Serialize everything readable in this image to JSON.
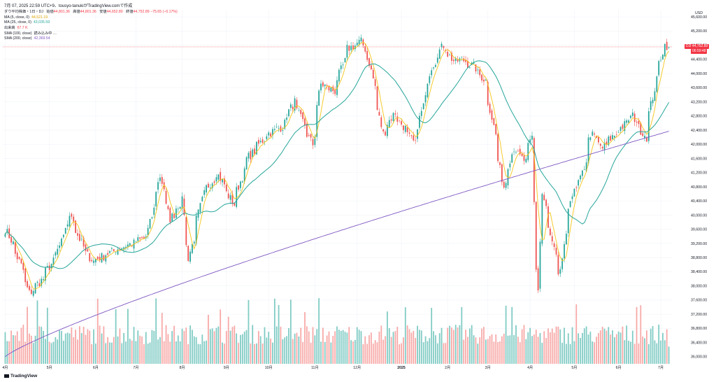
{
  "header": {
    "title": "7月 07, 2025 22:59 UTC+9、tousyo-tanukiがTradingView.comで作成"
  },
  "legend": {
    "symbol": "ダウ平均株価・1日・DJ",
    "ohlc": [
      {
        "label": "始値",
        "value": "44,801.36"
      },
      {
        "label": "高値",
        "value": "44,801.36"
      },
      {
        "label": "安値",
        "value": "44,652.80"
      },
      {
        "label": "終値",
        "value": "44,752.89"
      },
      {
        "label": "",
        "value": "−75.65 (−0.17%)"
      }
    ],
    "indicators": [
      {
        "label": "MA (5, close, 0)",
        "value": "44,521.19",
        "color": "#f5c518"
      },
      {
        "label": "MA (25, close, 0)",
        "value": "43,035.59",
        "color": "#26a69a"
      },
      {
        "label": "出来高",
        "value": "67.7 K",
        "color": "#f23645"
      },
      {
        "label": "SMA (100, close)",
        "value": "読み込み中 …",
        "color": "#131722"
      },
      {
        "label": "SMA (200, close)",
        "value": "42,369.54",
        "color": "#7e57c2"
      }
    ]
  },
  "currency": "USD",
  "last_price_tag": "44,752.89",
  "last_price_sub": "06:59:48",
  "last_price_prefix": "DJI",
  "watermark": "TradingView",
  "colors": {
    "up": "#26a69a",
    "down": "#ef5350",
    "ma5": "#f5c518",
    "ma25": "#26a69a",
    "sma200": "#7e57c2",
    "vol_up": "#80cbc4",
    "vol_down": "#f7a9a7"
  },
  "chart_data": {
    "type": "candlestick",
    "ylabel": "USD",
    "ylim": [
      35800,
      45800
    ],
    "y_ticks": [
      36000,
      36400,
      36800,
      37200,
      37600,
      38000,
      38400,
      38800,
      39200,
      39600,
      40000,
      40400,
      40800,
      41200,
      41600,
      42000,
      42400,
      42800,
      43200,
      43600,
      44000,
      44400,
      44800,
      45200,
      45600
    ],
    "y_tick_labels": [
      "36,000.00",
      "36,400.00",
      "36,800.00",
      "37,200.00",
      "37,600.00",
      "38,000.00",
      "38,400.00",
      "38,800.00",
      "39,200.00",
      "39,600.00",
      "40,000.00",
      "40,400.00",
      "40,800.00",
      "41,200.00",
      "41,600.00",
      "42,000.00",
      "42,400.00",
      "42,800.00",
      "43,200.00",
      "43,600.00",
      "44,000.00",
      "44,400.00",
      "44,800.00",
      "45,200.00",
      "45,600.00"
    ],
    "x_labels": [
      {
        "label": "4月",
        "month": "2024-04"
      },
      {
        "label": "5月",
        "month": "2024-05"
      },
      {
        "label": "6月",
        "month": "2024-06"
      },
      {
        "label": "7月",
        "month": "2024-07"
      },
      {
        "label": "8月",
        "month": "2024-08"
      },
      {
        "label": "9月",
        "month": "2024-09"
      },
      {
        "label": "10月",
        "month": "2024-10"
      },
      {
        "label": "11月",
        "month": "2024-11"
      },
      {
        "label": "12月",
        "month": "2024-12"
      },
      {
        "label": "2025",
        "month": "2025-01"
      },
      {
        "label": "2月",
        "month": "2025-02"
      },
      {
        "label": "3月",
        "month": "2025-03"
      },
      {
        "label": "4月",
        "month": "2025-04"
      },
      {
        "label": "5月",
        "month": "2025-05"
      },
      {
        "label": "6月",
        "month": "2025-06"
      },
      {
        "label": "7月",
        "month": "2025-07"
      }
    ],
    "close_anchors": [
      [
        "2024-04-01",
        39600
      ],
      [
        "2024-04-10",
        38700
      ],
      [
        "2024-04-17",
        37800
      ],
      [
        "2024-04-26",
        38200
      ],
      [
        "2024-05-06",
        38900
      ],
      [
        "2024-05-16",
        40000
      ],
      [
        "2024-05-24",
        39100
      ],
      [
        "2024-05-31",
        38700
      ],
      [
        "2024-06-10",
        38900
      ],
      [
        "2024-06-20",
        39100
      ],
      [
        "2024-06-28",
        39200
      ],
      [
        "2024-07-08",
        39400
      ],
      [
        "2024-07-17",
        41100
      ],
      [
        "2024-07-24",
        39900
      ],
      [
        "2024-08-01",
        40400
      ],
      [
        "2024-08-06",
        38800
      ],
      [
        "2024-08-16",
        40600
      ],
      [
        "2024-08-26",
        41200
      ],
      [
        "2024-09-06",
        40300
      ],
      [
        "2024-09-16",
        41600
      ],
      [
        "2024-09-30",
        42300
      ],
      [
        "2024-10-10",
        42500
      ],
      [
        "2024-10-18",
        43200
      ],
      [
        "2024-10-31",
        42000
      ],
      [
        "2024-11-06",
        43700
      ],
      [
        "2024-11-15",
        43500
      ],
      [
        "2024-11-25",
        44700
      ],
      [
        "2024-12-04",
        44900
      ],
      [
        "2024-12-10",
        44300
      ],
      [
        "2024-12-19",
        42300
      ],
      [
        "2024-12-27",
        42900
      ],
      [
        "2025-01-10",
        42000
      ],
      [
        "2025-01-22",
        44200
      ],
      [
        "2025-01-30",
        44800
      ],
      [
        "2025-02-07",
        44300
      ],
      [
        "2025-02-12",
        44400
      ],
      [
        "2025-02-20",
        44200
      ],
      [
        "2025-02-28",
        43800
      ],
      [
        "2025-03-04",
        43000
      ],
      [
        "2025-03-13",
        40800
      ],
      [
        "2025-03-20",
        41900
      ],
      [
        "2025-03-28",
        41500
      ],
      [
        "2025-04-02",
        42200
      ],
      [
        "2025-04-04",
        38500
      ],
      [
        "2025-04-07",
        37900
      ],
      [
        "2025-04-09",
        40600
      ],
      [
        "2025-04-21",
        38200
      ],
      [
        "2025-04-29",
        40500
      ],
      [
        "2025-05-06",
        41000
      ],
      [
        "2025-05-13",
        42300
      ],
      [
        "2025-05-21",
        41900
      ],
      [
        "2025-05-30",
        42300
      ],
      [
        "2025-06-11",
        42800
      ],
      [
        "2025-06-20",
        42200
      ],
      [
        "2025-06-27",
        43800
      ],
      [
        "2025-07-03",
        44800
      ],
      [
        "2025-07-07",
        44753
      ]
    ],
    "ma_25_end": 43035.59,
    "ma_5_end": 44521.19,
    "sma_200_end": 42369.54,
    "sma_200_start": 36000,
    "last_close": 44752.89,
    "volume_ylim": [
      0,
      1200
    ],
    "volume_last": 67.7
  }
}
